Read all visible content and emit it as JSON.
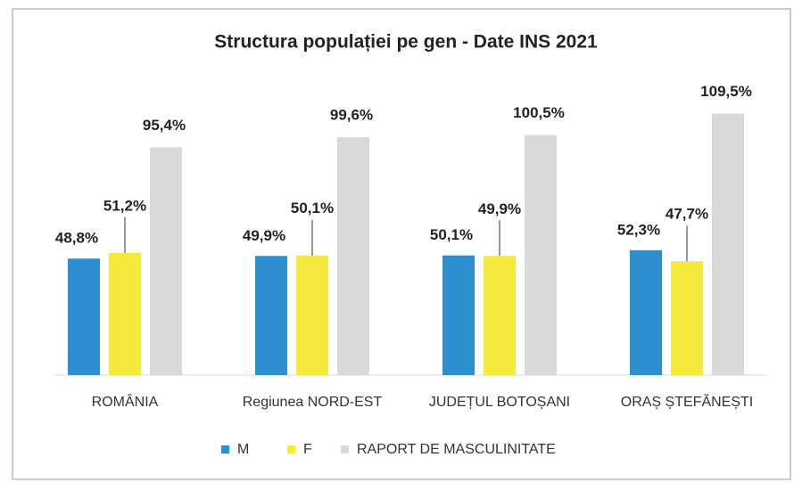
{
  "chart_data": {
    "type": "bar",
    "title": "Structura populației pe gen - Date INS 2021",
    "categories": [
      "ROMÂNIA",
      "Regiunea NORD-EST",
      "JUDEȚUL BOTOȘANI",
      "ORAȘ ȘTEFĂNEȘTI"
    ],
    "series": [
      {
        "name": "M",
        "color": "#2e8fd0",
        "values": [
          48.8,
          49.9,
          50.1,
          52.3
        ],
        "value_labels": [
          "48,8%",
          "49,9%",
          "50,1%",
          "52,3%"
        ]
      },
      {
        "name": "F",
        "color": "#f5ea3c",
        "values": [
          51.2,
          50.1,
          49.9,
          47.7
        ],
        "value_labels": [
          "51,2%",
          "50,1%",
          "49,9%",
          "47,7%"
        ]
      },
      {
        "name": "RAPORT DE MASCULINITATE",
        "color": "#d9d9d9",
        "values": [
          95.4,
          99.6,
          100.5,
          109.5
        ],
        "value_labels": [
          "95,4%",
          "99,6%",
          "100,5%",
          "109,5%"
        ]
      }
    ],
    "legend": "bottom"
  }
}
